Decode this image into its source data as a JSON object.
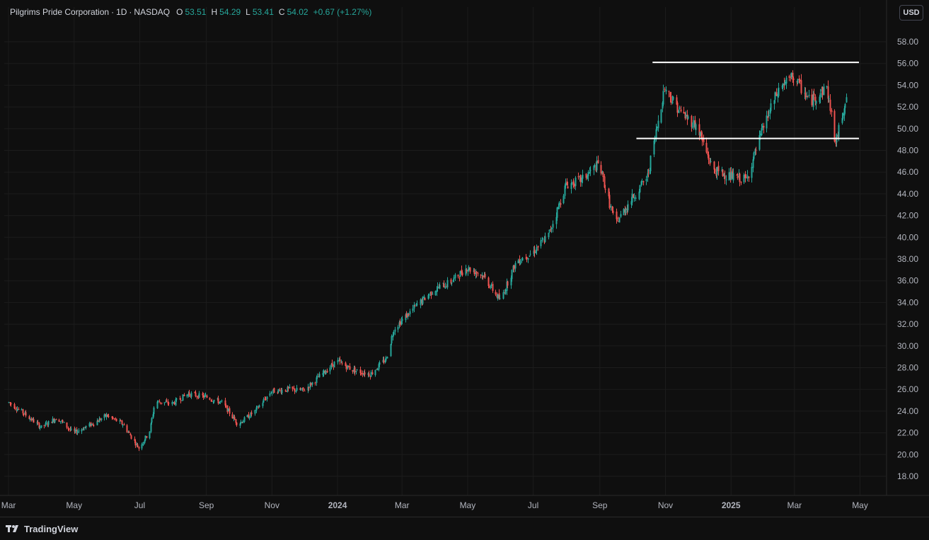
{
  "header": {
    "symbol": "Pilgrims Pride Corporation",
    "interval": "1D",
    "exchange": "NASDAQ",
    "open_label": "O",
    "open": "53.51",
    "high_label": "H",
    "high": "54.29",
    "low_label": "L",
    "low": "53.41",
    "close_label": "C",
    "close": "54.02",
    "change": "+0.67 (+1.27%)"
  },
  "currency_button": "USD",
  "footer": {
    "brand": "TradingView"
  },
  "colors": {
    "up": "#26a69a",
    "down": "#ef5350",
    "background": "#0f0f0f",
    "grid": "#1c1c1c",
    "level_line": "#ffffff"
  },
  "chart_data": {
    "type": "candlestick",
    "x_tick_labels": [
      "Mar",
      "May",
      "Jul",
      "Sep",
      "Nov",
      "2024",
      "Mar",
      "May",
      "Jul",
      "Sep",
      "Nov",
      "2025",
      "Mar",
      "May"
    ],
    "y_ticks": [
      18,
      20,
      22,
      24,
      26,
      28,
      30,
      32,
      34,
      36,
      38,
      40,
      42,
      44,
      46,
      48,
      50,
      52,
      54,
      56,
      58
    ],
    "ylim": [
      16.5,
      59.5
    ],
    "x_range": [
      "2023-02-25",
      "2025-05-25"
    ],
    "horizontal_levels": [
      {
        "price": 56.1,
        "from": "2024-10-20",
        "to": "2025-04-30"
      },
      {
        "price": 49.1,
        "from": "2024-10-05",
        "to": "2025-04-30"
      }
    ],
    "price_path": [
      [
        "2023-03-01",
        24.8
      ],
      [
        "2023-03-15",
        23.8
      ],
      [
        "2023-03-31",
        22.5
      ],
      [
        "2023-04-15",
        23.4
      ],
      [
        "2023-04-30",
        22.0
      ],
      [
        "2023-05-15",
        22.7
      ],
      [
        "2023-05-31",
        23.6
      ],
      [
        "2023-06-15",
        22.8
      ],
      [
        "2023-06-30",
        20.6
      ],
      [
        "2023-07-10",
        22.2
      ],
      [
        "2023-07-15",
        24.9
      ],
      [
        "2023-07-31",
        24.7
      ],
      [
        "2023-08-15",
        25.6
      ],
      [
        "2023-08-31",
        25.3
      ],
      [
        "2023-09-15",
        24.8
      ],
      [
        "2023-09-30",
        22.8
      ],
      [
        "2023-10-15",
        23.9
      ],
      [
        "2023-10-31",
        25.8
      ],
      [
        "2023-11-15",
        26.0
      ],
      [
        "2023-11-30",
        25.9
      ],
      [
        "2023-12-15",
        27.2
      ],
      [
        "2023-12-31",
        28.6
      ],
      [
        "2024-01-15",
        27.8
      ],
      [
        "2024-01-31",
        27.4
      ],
      [
        "2024-02-15",
        28.8
      ],
      [
        "2024-02-22",
        31.6
      ],
      [
        "2024-03-15",
        33.8
      ],
      [
        "2024-03-31",
        35.2
      ],
      [
        "2024-04-15",
        35.9
      ],
      [
        "2024-04-30",
        37.2
      ],
      [
        "2024-05-15",
        36.5
      ],
      [
        "2024-05-31",
        34.2
      ],
      [
        "2024-06-15",
        37.8
      ],
      [
        "2024-06-30",
        38.6
      ],
      [
        "2024-07-15",
        40.2
      ],
      [
        "2024-07-31",
        44.8
      ],
      [
        "2024-08-15",
        45.3
      ],
      [
        "2024-08-31",
        46.8
      ],
      [
        "2024-09-15",
        41.2
      ],
      [
        "2024-09-30",
        43.5
      ],
      [
        "2024-10-15",
        45.6
      ],
      [
        "2024-10-31",
        53.8
      ],
      [
        "2024-11-15",
        51.5
      ],
      [
        "2024-11-30",
        50.2
      ],
      [
        "2024-12-15",
        46.2
      ],
      [
        "2024-12-31",
        45.6
      ],
      [
        "2025-01-15",
        45.3
      ],
      [
        "2025-01-31",
        50.2
      ],
      [
        "2025-02-15",
        53.8
      ],
      [
        "2025-02-28",
        54.8
      ],
      [
        "2025-03-15",
        52.5
      ],
      [
        "2025-03-31",
        53.8
      ],
      [
        "2025-04-08",
        48.6
      ],
      [
        "2025-04-20",
        54.0
      ]
    ]
  }
}
